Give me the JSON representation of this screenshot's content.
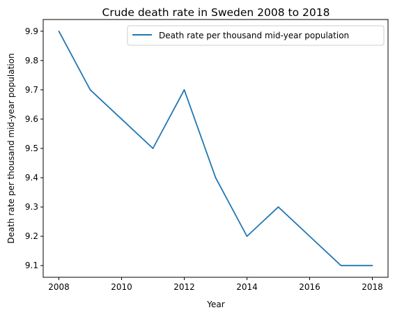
{
  "chart_data": {
    "type": "line",
    "title": "Crude death rate in Sweden 2008 to 2018",
    "xlabel": "Year",
    "ylabel": "Death rate per thousand mid-year population",
    "x": [
      2008,
      2009,
      2010,
      2011,
      2012,
      2013,
      2014,
      2015,
      2016,
      2017,
      2018
    ],
    "series": [
      {
        "name": "Death rate per thousand mid-year population",
        "color": "#1f77b4",
        "values": [
          9.9,
          9.7,
          9.6,
          9.5,
          9.7,
          9.4,
          9.2,
          9.3,
          9.2,
          9.1,
          9.1
        ]
      }
    ],
    "xticks": [
      "2008",
      "2010",
      "2012",
      "2014",
      "2016",
      "2018"
    ],
    "yticks": [
      "9.1",
      "9.2",
      "9.3",
      "9.4",
      "9.5",
      "9.6",
      "9.7",
      "9.8",
      "9.9"
    ],
    "xlim": [
      2007.5,
      2018.5
    ],
    "ylim": [
      9.06,
      9.94
    ],
    "grid": false,
    "legend_position": "top-right"
  }
}
